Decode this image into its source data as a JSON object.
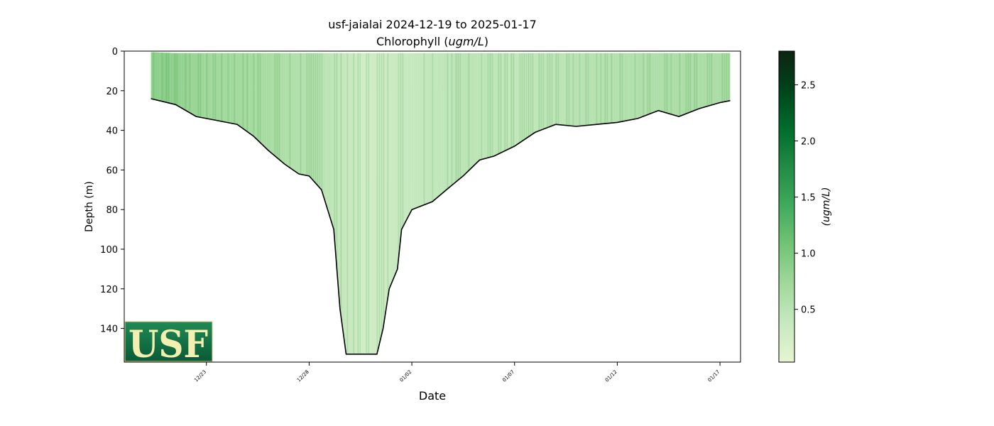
{
  "chart_data": {
    "type": "heatmap",
    "title": "usf-jaialai 2024-12-19 to 2025-01-17",
    "subtitle_prefix": "Chlorophyll (",
    "subtitle_unit": "ugm/L",
    "subtitle_suffix": ")",
    "xlabel": "Date",
    "ylabel": "Depth (m)",
    "colorbar_label": "(ugm/L)",
    "xlim": [
      "2024-12-19",
      "2025-01-18"
    ],
    "ylim": [
      0,
      157
    ],
    "y_inverted": true,
    "x_ticks": [
      "12/23",
      "12/28",
      "01/02",
      "01/07",
      "01/12",
      "01/17"
    ],
    "x_tick_dates": [
      "2024-12-23",
      "2024-12-28",
      "2025-01-02",
      "2025-01-07",
      "2025-01-12",
      "2025-01-17"
    ],
    "y_ticks": [
      0,
      20,
      40,
      60,
      80,
      100,
      120,
      140
    ],
    "colorbar_range": [
      0.03,
      2.8
    ],
    "colorbar_ticks": [
      "0.5",
      "1.0",
      "1.5",
      "2.0",
      "2.5"
    ],
    "colorbar_tick_values": [
      0.5,
      1.0,
      1.5,
      2.0,
      2.5
    ],
    "colormap": [
      "#e6f5d0",
      "#c7e9c0",
      "#a1d99b",
      "#74c476",
      "#41ab5d",
      "#238b45",
      "#006d2c",
      "#00441b",
      "#0d2410"
    ],
    "profile_envelope": [
      {
        "date": "2024-12-20.3",
        "top": 0.5,
        "bottom": 24
      },
      {
        "date": "2024-12-21.5",
        "top": 1,
        "bottom": 27
      },
      {
        "date": "2024-12-22.5",
        "top": 1,
        "bottom": 33
      },
      {
        "date": "2024-12-23.5",
        "top": 1,
        "bottom": 35
      },
      {
        "date": "2024-12-24.5",
        "top": 1,
        "bottom": 37
      },
      {
        "date": "2024-12-25.3",
        "top": 1,
        "bottom": 43
      },
      {
        "date": "2024-12-26.0",
        "top": 1,
        "bottom": 50
      },
      {
        "date": "2024-12-26.8",
        "top": 1,
        "bottom": 57
      },
      {
        "date": "2024-12-27.5",
        "top": 1,
        "bottom": 62
      },
      {
        "date": "2024-12-28.0",
        "top": 1,
        "bottom": 63
      },
      {
        "date": "2024-12-28.6",
        "top": 1,
        "bottom": 70
      },
      {
        "date": "2024-12-29.2",
        "top": 1,
        "bottom": 90
      },
      {
        "date": "2024-12-29.5",
        "top": 1,
        "bottom": 130
      },
      {
        "date": "2024-12-29.8",
        "top": 1,
        "bottom": 153
      },
      {
        "date": "2024-12-31.3",
        "top": 1,
        "bottom": 153
      },
      {
        "date": "2024-12-31.6",
        "top": 1,
        "bottom": 140
      },
      {
        "date": "2024-12-31.9",
        "top": 1,
        "bottom": 120
      },
      {
        "date": "2025-01-01.3",
        "top": 1,
        "bottom": 110
      },
      {
        "date": "2025-01-01.5",
        "top": 1,
        "bottom": 90
      },
      {
        "date": "2025-01-02.0",
        "top": 1,
        "bottom": 80
      },
      {
        "date": "2025-01-03.0",
        "top": 1,
        "bottom": 76
      },
      {
        "date": "2025-01-03.8",
        "top": 1,
        "bottom": 69
      },
      {
        "date": "2025-01-04.5",
        "top": 1,
        "bottom": 63
      },
      {
        "date": "2025-01-05.3",
        "top": 1,
        "bottom": 55
      },
      {
        "date": "2025-01-06.0",
        "top": 1,
        "bottom": 53
      },
      {
        "date": "2025-01-07.0",
        "top": 1,
        "bottom": 48
      },
      {
        "date": "2025-01-08.0",
        "top": 1,
        "bottom": 41
      },
      {
        "date": "2025-01-09.0",
        "top": 1,
        "bottom": 37
      },
      {
        "date": "2025-01-10.0",
        "top": 1,
        "bottom": 38
      },
      {
        "date": "2025-01-11.0",
        "top": 1,
        "bottom": 37
      },
      {
        "date": "2025-01-12.0",
        "top": 1,
        "bottom": 36
      },
      {
        "date": "2025-01-13.0",
        "top": 1,
        "bottom": 34
      },
      {
        "date": "2025-01-14.0",
        "top": 1,
        "bottom": 30
      },
      {
        "date": "2025-01-15.0",
        "top": 1,
        "bottom": 33
      },
      {
        "date": "2025-01-16.0",
        "top": 1,
        "bottom": 29
      },
      {
        "date": "2025-01-17.0",
        "top": 1,
        "bottom": 26
      },
      {
        "date": "2025-01-17.5",
        "top": 1,
        "bottom": 25
      }
    ],
    "chlorophyll_bands": [
      {
        "date_start": "2024-12-20.3",
        "date_end": "2024-12-22.0",
        "value": 0.9
      },
      {
        "date_start": "2024-12-22.0",
        "date_end": "2024-12-24.0",
        "value": 0.75
      },
      {
        "date_start": "2024-12-24.0",
        "date_end": "2024-12-27.0",
        "value": 0.7
      },
      {
        "date_start": "2024-12-27.0",
        "date_end": "2024-12-29.5",
        "value": 0.55
      },
      {
        "date_start": "2024-12-29.5",
        "date_end": "2025-01-01.0",
        "value": 0.3
      },
      {
        "date_start": "2025-01-01.0",
        "date_end": "2025-01-03.0",
        "value": 0.4
      },
      {
        "date_start": "2025-01-03.0",
        "date_end": "2025-01-06.0",
        "value": 0.5
      },
      {
        "date_start": "2025-01-06.0",
        "date_end": "2025-01-09.0",
        "value": 0.45
      },
      {
        "date_start": "2025-01-09.0",
        "date_end": "2025-01-13.0",
        "value": 0.55
      },
      {
        "date_start": "2025-01-13.0",
        "date_end": "2025-01-17.5",
        "value": 0.65
      }
    ]
  },
  "logo": {
    "text": "USF",
    "bg_color": "#0b6b42",
    "text_color": "#f2efb0"
  }
}
